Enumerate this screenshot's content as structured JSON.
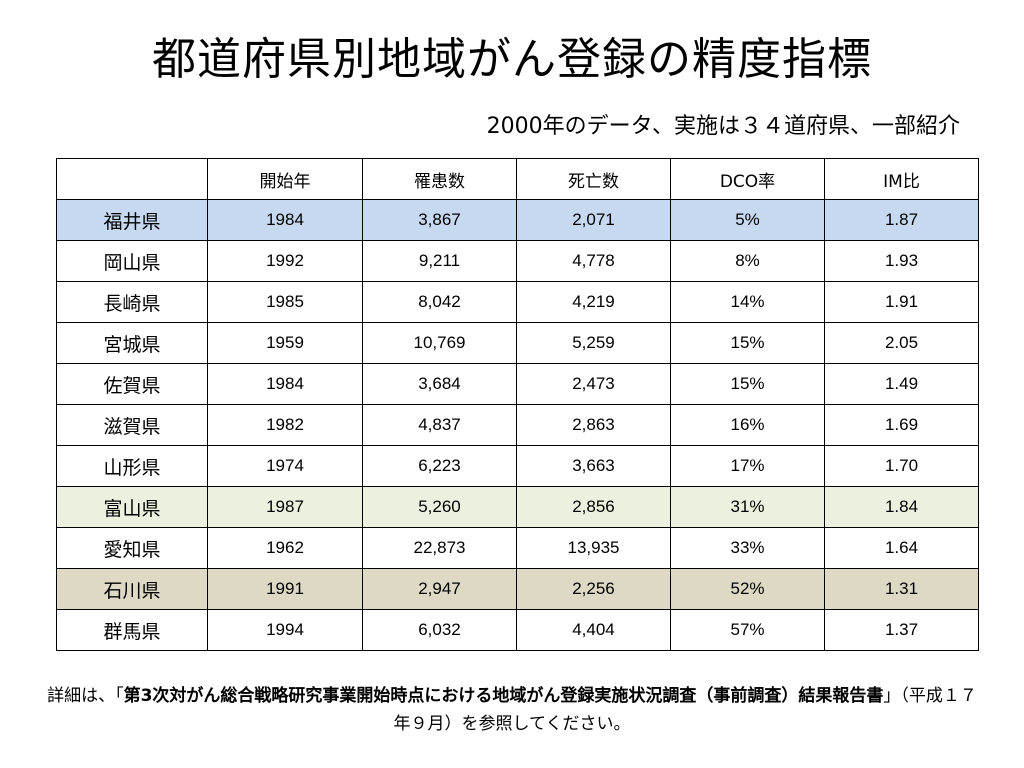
{
  "title": "都道府県別地域がん登録の精度指標",
  "subtitle": "2000年のデータ、実施は３４道府県、一部紹介",
  "table": {
    "headers": [
      "",
      "開始年",
      "罹患数",
      "死亡数",
      "DCO率",
      "IM比"
    ],
    "rows": [
      {
        "pref": "福井県",
        "start_year": "1984",
        "incidence": "3,867",
        "deaths": "2,071",
        "dco": "5%",
        "im": "1.87",
        "highlight": "blue"
      },
      {
        "pref": "岡山県",
        "start_year": "1992",
        "incidence": "9,211",
        "deaths": "4,778",
        "dco": "8%",
        "im": "1.93",
        "highlight": "none"
      },
      {
        "pref": "長崎県",
        "start_year": "1985",
        "incidence": "8,042",
        "deaths": "4,219",
        "dco": "14%",
        "im": "1.91",
        "highlight": "none"
      },
      {
        "pref": "宮城県",
        "start_year": "1959",
        "incidence": "10,769",
        "deaths": "5,259",
        "dco": "15%",
        "im": "2.05",
        "highlight": "none"
      },
      {
        "pref": "佐賀県",
        "start_year": "1984",
        "incidence": "3,684",
        "deaths": "2,473",
        "dco": "15%",
        "im": "1.49",
        "highlight": "none"
      },
      {
        "pref": "滋賀県",
        "start_year": "1982",
        "incidence": "4,837",
        "deaths": "2,863",
        "dco": "16%",
        "im": "1.69",
        "highlight": "none"
      },
      {
        "pref": "山形県",
        "start_year": "1974",
        "incidence": "6,223",
        "deaths": "3,663",
        "dco": "17%",
        "im": "1.70",
        "highlight": "none"
      },
      {
        "pref": "富山県",
        "start_year": "1987",
        "incidence": "5,260",
        "deaths": "2,856",
        "dco": "31%",
        "im": "1.84",
        "highlight": "green"
      },
      {
        "pref": "愛知県",
        "start_year": "1962",
        "incidence": "22,873",
        "deaths": "13,935",
        "dco": "33%",
        "im": "1.64",
        "highlight": "none"
      },
      {
        "pref": "石川県",
        "start_year": "1991",
        "incidence": "2,947",
        "deaths": "2,256",
        "dco": "52%",
        "im": "1.31",
        "highlight": "tan"
      },
      {
        "pref": "群馬県",
        "start_year": "1994",
        "incidence": "6,032",
        "deaths": "4,404",
        "dco": "57%",
        "im": "1.37",
        "highlight": "none"
      }
    ]
  },
  "highlight_colors": {
    "blue": "#c6d9f1",
    "green": "#ebf1de",
    "tan": "#ddd9c4"
  },
  "footnote": {
    "prefix": "詳細は、「",
    "emphasis": "第3次対がん総合戦略研究事業開始時点における地域がん登録実施状況調査（事前調査）結果報告書",
    "suffix": "」（平成１７年９月）を参照してください。"
  }
}
